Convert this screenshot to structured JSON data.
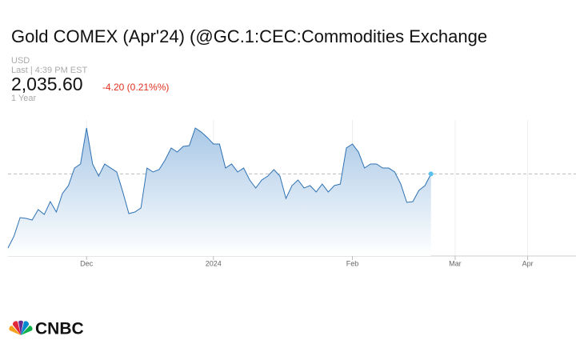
{
  "chart_data": {
    "type": "area",
    "title": "Gold COMEX (Apr'24) (@GC.1:CEC:Commodities Exchange",
    "currency": "USD",
    "timestamp": "Last | 4:39 PM EST",
    "last": {
      "value": 2035.6,
      "label": "2,035.60"
    },
    "change": "-4.20 (0.21%%)",
    "range_label": "1 Year",
    "logo": "CNBC",
    "color": "#2f72b3",
    "ylim": [
      1930,
      2105
    ],
    "categories": [
      null,
      null,
      null,
      null,
      null,
      null,
      null,
      null,
      null,
      null,
      null,
      null,
      null,
      "Dec",
      null,
      null,
      null,
      null,
      null,
      null,
      null,
      null,
      null,
      null,
      null,
      null,
      null,
      null,
      null,
      null,
      null,
      null,
      null,
      null,
      "2024",
      null,
      null,
      null,
      null,
      null,
      null,
      null,
      null,
      null,
      null,
      null,
      null,
      null,
      null,
      null,
      null,
      null,
      null,
      null,
      null,
      null,
      null,
      "Feb",
      null,
      null,
      null,
      null,
      null,
      null,
      null,
      null,
      null,
      null,
      null,
      null,
      null,
      null,
      null,
      null,
      "Mar",
      null,
      null,
      null,
      null,
      null,
      null,
      null,
      null,
      null,
      null,
      null,
      "Apr",
      null,
      null,
      null,
      null,
      null,
      null,
      null,
      null
    ],
    "values": [
      1940.3,
      1955.7,
      1979.4,
      1978.4,
      1976.3,
      1989.7,
      1983.5,
      2000,
      1986.6,
      2010.3,
      2020.6,
      2043.2,
      2048.4,
      2094.7,
      2048.4,
      2032.9,
      2048.4,
      2043.2,
      2038.1,
      2012.4,
      1984.6,
      1986.6,
      1991.8,
      2043.2,
      2038.1,
      2041.2,
      2053.5,
      2069,
      2063.8,
      2071,
      2072,
      2094.7,
      2089.4,
      2082.4,
      2074.1,
      2074.1,
      2043.2,
      2048.4,
      2038.1,
      2043.2,
      2027.8,
      2017.5,
      2027.8,
      2032.9,
      2041.2,
      2032.9,
      2004.1,
      2020.6,
      2027.8,
      2017.5,
      2020.6,
      2012.4,
      2022.6,
      2012.4,
      2020.6,
      2022.6,
      2069,
      2074.1,
      2063.8,
      2043.2,
      2048.4,
      2048.4,
      2043.2,
      2043.2,
      2038.1,
      2022.6,
      1999,
      2000,
      2014.4,
      2020.6,
      2035.6,
      null,
      null,
      null,
      null,
      null,
      null,
      null,
      null,
      null,
      null,
      null,
      null,
      null,
      null,
      null,
      null,
      null,
      null,
      null,
      null,
      null,
      null,
      null,
      null
    ]
  }
}
